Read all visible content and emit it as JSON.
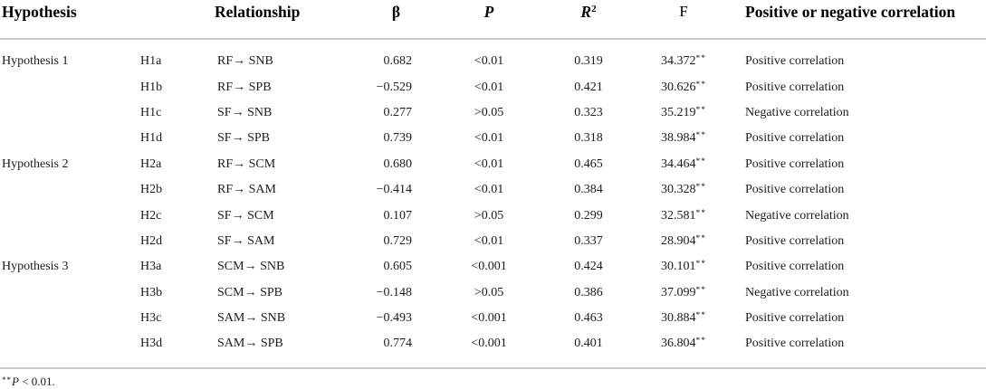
{
  "table": {
    "headers": {
      "hypothesis": "Hypothesis",
      "relationship": "Relationship",
      "beta": "β",
      "p": "P",
      "r_base": "R",
      "r_sup": "2",
      "f": "F",
      "correlation": "Positive or negative correlation"
    },
    "rows": [
      {
        "hypothesis": "Hypothesis 1",
        "code": "H1a",
        "relationship": "RF→ SNB",
        "beta": "0.682",
        "p": "<0.01",
        "r2": "0.319",
        "f": "34.372",
        "f_mark": "**",
        "correlation": "Positive correlation"
      },
      {
        "hypothesis": "",
        "code": "H1b",
        "relationship": "RF→ SPB",
        "beta": "−0.529",
        "p": "<0.01",
        "r2": "0.421",
        "f": "30.626",
        "f_mark": "**",
        "correlation": "Positive correlation"
      },
      {
        "hypothesis": "",
        "code": "H1c",
        "relationship": "SF→ SNB",
        "beta": "0.277",
        "p": ">0.05",
        "r2": "0.323",
        "f": "35.219",
        "f_mark": "**",
        "correlation": "Negative correlation"
      },
      {
        "hypothesis": "",
        "code": "H1d",
        "relationship": "SF→ SPB",
        "beta": "0.739",
        "p": "<0.01",
        "r2": "0.318",
        "f": "38.984",
        "f_mark": "**",
        "correlation": "Positive correlation"
      },
      {
        "hypothesis": "Hypothesis 2",
        "code": "H2a",
        "relationship": "RF→ SCM",
        "beta": "0.680",
        "p": "<0.01",
        "r2": "0.465",
        "f": "34.464",
        "f_mark": "**",
        "correlation": "Positive correlation"
      },
      {
        "hypothesis": "",
        "code": "H2b",
        "relationship": "RF→ SAM",
        "beta": "−0.414",
        "p": "<0.01",
        "r2": "0.384",
        "f": "30.328",
        "f_mark": "**",
        "correlation": "Positive correlation"
      },
      {
        "hypothesis": "",
        "code": "H2c",
        "relationship": "SF→ SCM",
        "beta": "0.107",
        "p": ">0.05",
        "r2": "0.299",
        "f": "32.581",
        "f_mark": "**",
        "correlation": "Negative correlation"
      },
      {
        "hypothesis": "",
        "code": "H2d",
        "relationship": "SF→ SAM",
        "beta": "0.729",
        "p": "<0.01",
        "r2": "0.337",
        "f": "28.904",
        "f_mark": "**",
        "correlation": "Positive correlation"
      },
      {
        "hypothesis": "Hypothesis 3",
        "code": "H3a",
        "relationship": "SCM→ SNB",
        "beta": "0.605",
        "p": "<0.001",
        "r2": "0.424",
        "f": "30.101",
        "f_mark": "**",
        "correlation": "Positive correlation"
      },
      {
        "hypothesis": "",
        "code": "H3b",
        "relationship": "SCM→ SPB",
        "beta": "−0.148",
        "p": ">0.05",
        "r2": "0.386",
        "f": "37.099",
        "f_mark": "**",
        "correlation": "Negative correlation"
      },
      {
        "hypothesis": "",
        "code": "H3c",
        "relationship": "SAM→ SNB",
        "beta": "−0.493",
        "p": "<0.001",
        "r2": "0.463",
        "f": "30.884",
        "f_mark": "**",
        "correlation": "Positive correlation"
      },
      {
        "hypothesis": "",
        "code": "H3d",
        "relationship": "SAM→ SPB",
        "beta": "0.774",
        "p": "<0.001",
        "r2": "0.401",
        "f": "36.804",
        "f_mark": "**",
        "correlation": "Positive correlation"
      }
    ],
    "footnote": {
      "marker": "**",
      "p_symbol": "P",
      "text": " < 0.01."
    }
  }
}
